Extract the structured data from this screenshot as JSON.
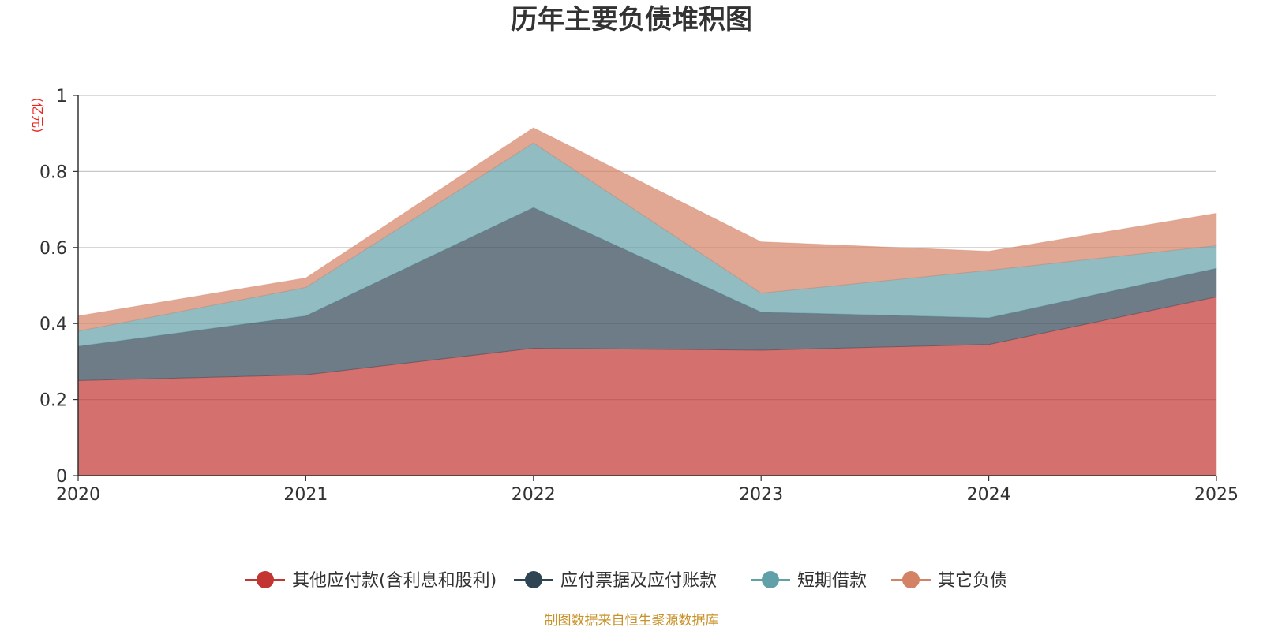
{
  "chart_data": {
    "type": "area",
    "stacked": true,
    "title": "历年主要负债堆积图",
    "unit_label": "(亿元)",
    "x": [
      "2020",
      "2021",
      "2022",
      "2023",
      "2024",
      "2025"
    ],
    "ylim": [
      0,
      1
    ],
    "yticks": [
      "0",
      "0.2",
      "0.4",
      "0.6",
      "0.8",
      "1"
    ],
    "ytick_values": [
      0,
      0.2,
      0.4,
      0.6,
      0.8,
      1
    ],
    "grid": true,
    "legend_position": "bottom",
    "series": [
      {
        "name": "其他应付款(含利息和股利)",
        "color": "#c23531",
        "values": [
          0.25,
          0.265,
          0.335,
          0.33,
          0.345,
          0.47
        ]
      },
      {
        "name": "应付票据及应付账款",
        "color": "#2f4554",
        "values": [
          0.09,
          0.155,
          0.37,
          0.1,
          0.07,
          0.075
        ]
      },
      {
        "name": "短期借款",
        "color": "#61a0a8",
        "values": [
          0.04,
          0.075,
          0.17,
          0.05,
          0.125,
          0.06
        ]
      },
      {
        "name": "其它负债",
        "color": "#d48265",
        "values": [
          0.04,
          0.025,
          0.04,
          0.135,
          0.05,
          0.085
        ]
      }
    ],
    "source": "制图数据来自恒生聚源数据库"
  }
}
